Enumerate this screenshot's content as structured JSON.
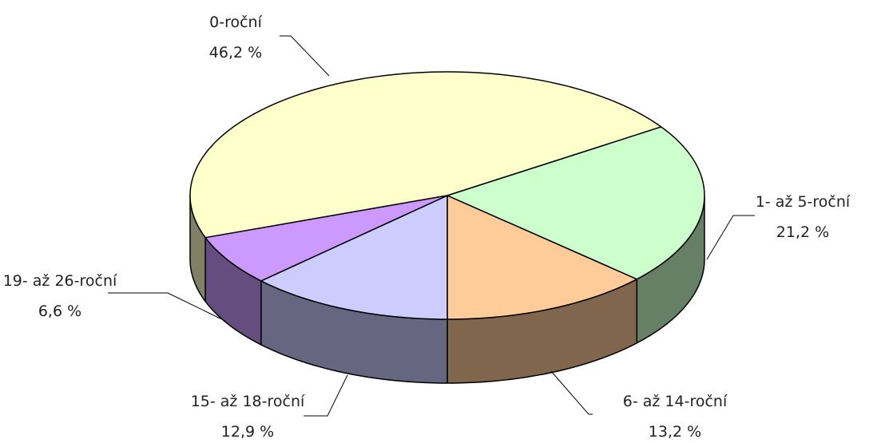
{
  "chart_data": {
    "type": "pie3d",
    "categories": [
      "0-roční",
      "1- až 5-roční",
      "6- až 14-roční",
      "15- až 18-roční",
      "19- až 26-roční"
    ],
    "values": [
      46.2,
      21.2,
      13.2,
      12.9,
      6.6
    ],
    "value_labels": [
      "46,2 %",
      "21,2 %",
      "13,2 %",
      "12,9 %",
      "6,6 %"
    ],
    "colors": [
      "#ffffcc",
      "#ccffcc",
      "#ffcc99",
      "#ccccff",
      "#cc99ff"
    ]
  }
}
